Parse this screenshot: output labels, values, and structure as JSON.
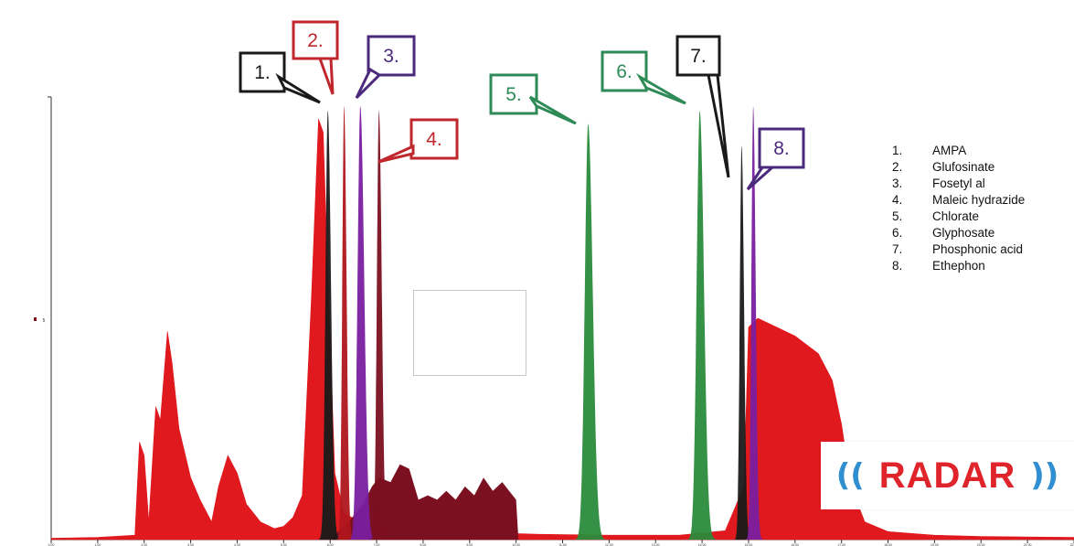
{
  "chart_data": {
    "type": "area",
    "xlim": [
      0,
      22
    ],
    "ylim": [
      0,
      100
    ],
    "series_order": [
      {
        "id": "matrix",
        "color": "#e0191f"
      },
      {
        "id": "maleic_hydrazide",
        "color": "#7b1020"
      },
      {
        "id": "ampa",
        "color": "#1a1a1a"
      },
      {
        "id": "glufosinate",
        "color": "#b0161e"
      },
      {
        "id": "fosetyl_al",
        "color": "#7a1fa0"
      },
      {
        "id": "chlorate",
        "color": "#2a8b3c"
      },
      {
        "id": "glyphosate",
        "color": "#2a8b3c"
      },
      {
        "id": "phosphonic_acid",
        "color": "#1a1a1a"
      },
      {
        "id": "ethephon",
        "color": "#7a1fa0"
      }
    ],
    "peaks": [
      {
        "label": "1.",
        "compound": "AMPA",
        "rt": 5.95,
        "height": 97,
        "width": 0.09,
        "color": "#1a1a1a",
        "callout_color": "#1a1a1a"
      },
      {
        "label": "2.",
        "compound": "Glufosinate",
        "rt": 6.3,
        "height": 98,
        "width": 0.07,
        "color": "#b0161e",
        "callout_color": "#c0272d"
      },
      {
        "label": "3.",
        "compound": "Fosetyl al",
        "rt": 6.65,
        "height": 98,
        "width": 0.11,
        "color": "#7a1fa0",
        "callout_color": "#4b2a7d"
      },
      {
        "label": "4.",
        "compound": "Maleic hydrazide",
        "rt": 7.05,
        "height": 97,
        "width": 0.08,
        "color": "#7b1020",
        "callout_color": "#c0272d"
      },
      {
        "label": "5.",
        "compound": "Chlorate",
        "rt": 11.55,
        "height": 94,
        "width": 0.13,
        "color": "#2a8b3c",
        "callout_color": "#2e8b57"
      },
      {
        "label": "6.",
        "compound": "Glyphosate",
        "rt": 13.95,
        "height": 97,
        "width": 0.12,
        "color": "#2a8b3c",
        "callout_color": "#2e8b57"
      },
      {
        "label": "7.",
        "compound": "Phosphonic acid",
        "rt": 14.85,
        "height": 89,
        "width": 0.07,
        "color": "#1a1a1a",
        "callout_color": "#1a1a1a"
      },
      {
        "label": "8.",
        "compound": "Ethephon",
        "rt": 15.1,
        "height": 98,
        "width": 0.07,
        "color": "#7a1fa0",
        "callout_color": "#4b2a7d"
      }
    ],
    "matrix_points": [
      [
        0.0,
        0.3
      ],
      [
        1.0,
        0.5
      ],
      [
        1.5,
        0.8
      ],
      [
        1.8,
        1.0
      ],
      [
        1.9,
        22
      ],
      [
        2.0,
        19
      ],
      [
        2.1,
        4
      ],
      [
        2.25,
        30
      ],
      [
        2.35,
        27
      ],
      [
        2.5,
        47
      ],
      [
        2.6,
        40
      ],
      [
        2.75,
        25
      ],
      [
        3.0,
        14
      ],
      [
        3.2,
        9
      ],
      [
        3.45,
        4
      ],
      [
        3.6,
        12
      ],
      [
        3.8,
        19
      ],
      [
        4.0,
        15
      ],
      [
        4.2,
        8
      ],
      [
        4.5,
        4
      ],
      [
        4.8,
        2.5
      ],
      [
        5.0,
        3
      ],
      [
        5.2,
        5
      ],
      [
        5.4,
        10
      ],
      [
        5.6,
        55
      ],
      [
        5.75,
        95
      ],
      [
        5.85,
        92
      ],
      [
        5.95,
        60
      ],
      [
        6.1,
        15
      ],
      [
        6.3,
        6
      ],
      [
        6.8,
        3
      ],
      [
        7.5,
        2.5
      ],
      [
        8.5,
        2
      ],
      [
        9.5,
        1.5
      ],
      [
        10.5,
        1.2
      ],
      [
        12.0,
        1.0
      ],
      [
        13.5,
        1.0
      ],
      [
        14.5,
        2
      ],
      [
        14.9,
        12
      ],
      [
        15.0,
        48
      ],
      [
        15.2,
        50
      ],
      [
        15.6,
        48
      ],
      [
        16.0,
        46
      ],
      [
        16.5,
        42
      ],
      [
        16.8,
        36
      ],
      [
        17.0,
        26
      ],
      [
        17.2,
        12
      ],
      [
        17.5,
        4
      ],
      [
        18.0,
        1.8
      ],
      [
        19.0,
        1.0
      ],
      [
        20.0,
        0.7
      ],
      [
        22.0,
        0.5
      ]
    ],
    "maleic_points": [
      [
        6.0,
        0
      ],
      [
        6.2,
        2
      ],
      [
        6.4,
        4
      ],
      [
        6.7,
        8
      ],
      [
        6.9,
        12
      ],
      [
        7.05,
        14
      ],
      [
        7.3,
        13
      ],
      [
        7.5,
        17
      ],
      [
        7.7,
        16
      ],
      [
        7.9,
        9
      ],
      [
        8.1,
        10
      ],
      [
        8.3,
        9
      ],
      [
        8.5,
        11
      ],
      [
        8.7,
        9
      ],
      [
        8.9,
        12
      ],
      [
        9.1,
        10
      ],
      [
        9.3,
        14
      ],
      [
        9.5,
        11
      ],
      [
        9.7,
        13
      ],
      [
        10.0,
        9
      ],
      [
        10.05,
        0
      ]
    ],
    "legend": [
      {
        "num": "1.",
        "name": "AMPA"
      },
      {
        "num": "2.",
        "name": "Glufosinate"
      },
      {
        "num": "3.",
        "name": "Fosetyl al"
      },
      {
        "num": "4.",
        "name": "Maleic hydrazide"
      },
      {
        "num": "5.",
        "name": "Chlorate"
      },
      {
        "num": "6.",
        "name": "Glyphosate"
      },
      {
        "num": "7.",
        "name": "Phosphonic acid"
      },
      {
        "num": "8.",
        "name": "Ethephon"
      }
    ],
    "x_ticks": [
      0,
      1,
      2,
      3,
      4,
      5,
      6,
      7,
      8,
      9,
      10,
      11,
      12,
      13,
      14,
      15,
      16,
      17,
      18,
      19,
      20,
      21,
      22
    ],
    "y_axis_marker": "5"
  },
  "logo": {
    "text": "RADAR"
  }
}
